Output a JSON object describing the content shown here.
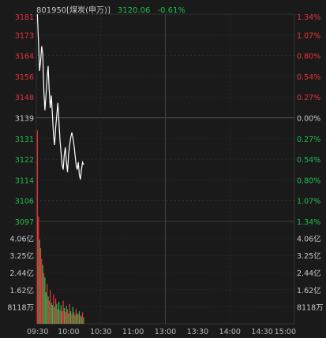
{
  "header": {
    "code_name": "801950[煤炭(申万)]",
    "price": "3120.06",
    "change": "-0.61%"
  },
  "colors": {
    "background": "#1a1a1a",
    "up": "#e8333a",
    "down": "#1dbf4f",
    "flat": "#c8c8c8",
    "price_line": "#ffffff",
    "grid": "#333333"
  },
  "chart_data": [
    {
      "type": "line",
      "series": [
        {
          "values": [
            3181,
            3170,
            3158,
            3162,
            3168,
            3165,
            3150,
            3142,
            3148,
            3155,
            3160,
            3150,
            3143,
            3148,
            3140,
            3132,
            3128,
            3135,
            3140,
            3145,
            3138,
            3130,
            3125,
            3120,
            3118,
            3124,
            3127,
            3121,
            3117,
            3124,
            3128,
            3131,
            3133,
            3131,
            3128,
            3124,
            3120,
            3118,
            3121,
            3116,
            3114,
            3118,
            3121,
            3120
          ]
        }
      ],
      "x_ticks": [
        "09:30",
        "10:00",
        "10:30",
        "11:00",
        "13:00",
        "13:30",
        "14:00",
        "14:30",
        "15:00"
      ],
      "x_range": [
        0,
        240
      ],
      "y_ticks_left": [
        "3181",
        "3173",
        "3164",
        "3156",
        "3148",
        "3139",
        "3131",
        "3122",
        "3114",
        "3106",
        "3097"
      ],
      "y_ticks_right": [
        "1.34%",
        "1.07%",
        "0.80%",
        "0.54%",
        "0.27%",
        "0.00%",
        "0.27%",
        "0.54%",
        "0.80%",
        "1.07%",
        "1.34%"
      ],
      "ylim": [
        3097,
        3181
      ],
      "base": 3139,
      "grid": true
    },
    {
      "type": "bar",
      "values": [
        9.2,
        5.1,
        4.0,
        3.6,
        3.1,
        2.8,
        2.4,
        2.2,
        1.5,
        1.9,
        1.3,
        1.1,
        1.6,
        1.0,
        0.9,
        1.4,
        0.8,
        1.2,
        0.95,
        0.7,
        1.05,
        0.65,
        0.9,
        0.6,
        1.1,
        0.75,
        0.55,
        0.85,
        0.7,
        0.5,
        0.95,
        0.6,
        0.45,
        0.8,
        0.55,
        0.4,
        0.7,
        0.5,
        0.45,
        0.6,
        0.4,
        0.35,
        0.55,
        0.3
      ],
      "colors": [
        "up",
        "up",
        "down",
        "up",
        "up",
        "down",
        "up",
        "down",
        "down",
        "up",
        "down",
        "up",
        "up",
        "down",
        "down",
        "up",
        "down",
        "up",
        "down",
        "up",
        "down",
        "up",
        "down",
        "up",
        "up",
        "down",
        "up",
        "down",
        "up",
        "down",
        "up",
        "down",
        "up",
        "down",
        "up",
        "down",
        "up",
        "down",
        "up",
        "down",
        "up",
        "down",
        "up",
        "down"
      ],
      "y_ticks_left": [
        "4.06亿",
        "3.25亿",
        "2.44亿",
        "1.62亿",
        "8118万"
      ],
      "y_ticks_right": [
        "4.06亿",
        "3.25亿",
        "2.44亿",
        "1.62亿",
        "8118万"
      ],
      "tick_values": [
        4.06,
        3.25,
        2.44,
        1.62,
        0.8118
      ],
      "units": "亿",
      "ylim": [
        0,
        4.87
      ]
    }
  ]
}
